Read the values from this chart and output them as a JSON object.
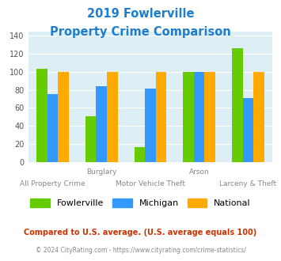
{
  "title_line1": "2019 Fowlerville",
  "title_line2": "Property Crime Comparison",
  "title_color": "#1e7dcc",
  "categories": [
    "All Property Crime",
    "Burglary",
    "Motor Vehicle Theft",
    "Arson",
    "Larceny & Theft"
  ],
  "x_label_top": [
    "",
    "Burglary",
    "",
    "Arson",
    ""
  ],
  "x_label_bottom": [
    "All Property Crime",
    "",
    "Motor Vehicle Theft",
    "",
    "Larceny & Theft"
  ],
  "fowlerville": [
    103,
    51,
    16,
    100,
    126
  ],
  "michigan": [
    75,
    84,
    81,
    100,
    71
  ],
  "national": [
    100,
    100,
    100,
    100,
    100
  ],
  "fowlerville_color": "#66cc00",
  "michigan_color": "#3399ff",
  "national_color": "#ffaa00",
  "ylim": [
    0,
    145
  ],
  "yticks": [
    0,
    20,
    40,
    60,
    80,
    100,
    120,
    140
  ],
  "bg_color": "#ddeef5",
  "legend_labels": [
    "Fowlerville",
    "Michigan",
    "National"
  ],
  "footnote1": "Compared to U.S. average. (U.S. average equals 100)",
  "footnote1_color": "#cc3300",
  "footnote2": "© 2024 CityRating.com - https://www.cityrating.com/crime-statistics/",
  "footnote2_color": "#888888",
  "bar_width": 0.22
}
